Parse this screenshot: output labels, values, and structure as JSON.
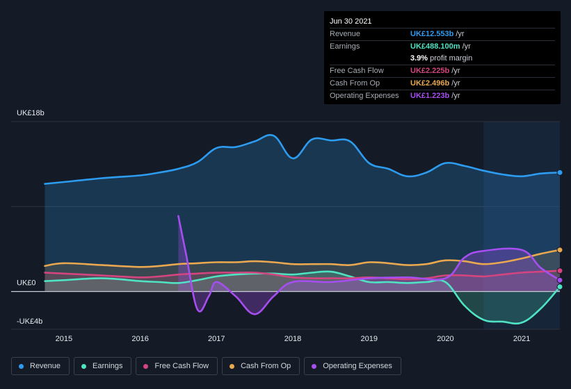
{
  "colors": {
    "revenue": "#2d9cf0",
    "earnings": "#4fe3c4",
    "fcf": "#d4457f",
    "cfo": "#e9a84f",
    "opex": "#a64ef0"
  },
  "tooltip": {
    "date": "Jun 30 2021",
    "rows": [
      {
        "label": "Revenue",
        "value": "UK£12.553b",
        "unit": "/yr",
        "color": "#2d9cf0"
      },
      {
        "label": "Earnings",
        "value": "UK£488.100m",
        "unit": "/yr",
        "color": "#4fe3c4"
      },
      {
        "label": "",
        "value": "3.9%",
        "unit": "profit margin",
        "color": "#ffffff"
      },
      {
        "label": "Free Cash Flow",
        "value": "UK£2.225b",
        "unit": "/yr",
        "color": "#d4457f"
      },
      {
        "label": "Cash From Op",
        "value": "UK£2.496b",
        "unit": "/yr",
        "color": "#e9a84f"
      },
      {
        "label": "Operating Expenses",
        "value": "UK£1.223b",
        "unit": "/yr",
        "color": "#a64ef0"
      }
    ]
  },
  "legend": [
    {
      "key": "revenue",
      "label": "Revenue"
    },
    {
      "key": "earnings",
      "label": "Earnings"
    },
    {
      "key": "fcf",
      "label": "Free Cash Flow"
    },
    {
      "key": "cfo",
      "label": "Cash From Op"
    },
    {
      "key": "opex",
      "label": "Operating Expenses"
    }
  ],
  "chart_data": {
    "type": "area",
    "ylim": [
      -4,
      18
    ],
    "y_tick_labels": [
      {
        "value": 18,
        "label": "UK£18b"
      },
      {
        "value": 0,
        "label": "UK£0"
      },
      {
        "value": -4,
        "label": "-UK£4b"
      }
    ],
    "xlim": [
      2014.6,
      2021.5
    ],
    "x_tick_labels": [
      "2015",
      "2016",
      "2017",
      "2018",
      "2019",
      "2020",
      "2021"
    ],
    "x_tick_values": [
      2015,
      2016,
      2017,
      2018,
      2019,
      2020,
      2021
    ],
    "forecast_start": 2020.5,
    "series": [
      {
        "key": "revenue",
        "name": "Revenue",
        "points": [
          [
            2014.75,
            11.4
          ],
          [
            2015.0,
            11.6
          ],
          [
            2015.5,
            12.0
          ],
          [
            2016.0,
            12.3
          ],
          [
            2016.25,
            12.6
          ],
          [
            2016.5,
            13.0
          ],
          [
            2016.75,
            13.7
          ],
          [
            2017.0,
            15.2
          ],
          [
            2017.25,
            15.3
          ],
          [
            2017.5,
            15.9
          ],
          [
            2017.75,
            16.5
          ],
          [
            2018.0,
            14.1
          ],
          [
            2018.25,
            16.1
          ],
          [
            2018.5,
            16.0
          ],
          [
            2018.75,
            15.9
          ],
          [
            2019.0,
            13.6
          ],
          [
            2019.25,
            13.0
          ],
          [
            2019.5,
            12.2
          ],
          [
            2019.75,
            12.6
          ],
          [
            2020.0,
            13.6
          ],
          [
            2020.25,
            13.3
          ],
          [
            2020.5,
            12.8
          ],
          [
            2020.75,
            12.4
          ],
          [
            2021.0,
            12.2
          ],
          [
            2021.25,
            12.5
          ],
          [
            2021.5,
            12.6
          ]
        ]
      },
      {
        "key": "earnings",
        "name": "Earnings",
        "points": [
          [
            2014.75,
            1.1
          ],
          [
            2015.0,
            1.2
          ],
          [
            2015.5,
            1.4
          ],
          [
            2016.0,
            1.1
          ],
          [
            2016.25,
            1.0
          ],
          [
            2016.5,
            0.9
          ],
          [
            2016.75,
            1.2
          ],
          [
            2017.0,
            1.6
          ],
          [
            2017.25,
            1.8
          ],
          [
            2017.5,
            1.9
          ],
          [
            2017.75,
            1.9
          ],
          [
            2018.0,
            1.8
          ],
          [
            2018.25,
            2.0
          ],
          [
            2018.5,
            2.1
          ],
          [
            2018.75,
            1.6
          ],
          [
            2019.0,
            1.0
          ],
          [
            2019.25,
            1.0
          ],
          [
            2019.5,
            0.9
          ],
          [
            2019.75,
            1.0
          ],
          [
            2020.0,
            1.0
          ],
          [
            2020.25,
            -1.5
          ],
          [
            2020.5,
            -3.0
          ],
          [
            2020.75,
            -3.2
          ],
          [
            2021.0,
            -3.3
          ],
          [
            2021.25,
            -1.8
          ],
          [
            2021.5,
            0.5
          ]
        ]
      },
      {
        "key": "fcf",
        "name": "Free Cash Flow",
        "points": [
          [
            2014.75,
            2.0
          ],
          [
            2015.0,
            1.9
          ],
          [
            2015.5,
            1.7
          ],
          [
            2016.0,
            1.5
          ],
          [
            2016.25,
            1.6
          ],
          [
            2016.5,
            1.8
          ],
          [
            2016.75,
            1.9
          ],
          [
            2017.0,
            2.0
          ],
          [
            2017.25,
            2.0
          ],
          [
            2017.5,
            2.0
          ],
          [
            2017.75,
            1.8
          ],
          [
            2018.0,
            1.5
          ],
          [
            2018.25,
            1.4
          ],
          [
            2018.5,
            1.4
          ],
          [
            2018.75,
            1.4
          ],
          [
            2019.0,
            1.5
          ],
          [
            2019.25,
            1.4
          ],
          [
            2019.5,
            1.3
          ],
          [
            2019.75,
            1.4
          ],
          [
            2020.0,
            1.7
          ],
          [
            2020.25,
            1.7
          ],
          [
            2020.5,
            1.6
          ],
          [
            2020.75,
            1.8
          ],
          [
            2021.0,
            2.0
          ],
          [
            2021.25,
            2.1
          ],
          [
            2021.5,
            2.2
          ]
        ]
      },
      {
        "key": "cfo",
        "name": "Cash From Op",
        "points": [
          [
            2014.75,
            2.7
          ],
          [
            2015.0,
            3.0
          ],
          [
            2015.5,
            2.8
          ],
          [
            2016.0,
            2.6
          ],
          [
            2016.25,
            2.7
          ],
          [
            2016.5,
            2.9
          ],
          [
            2016.75,
            3.0
          ],
          [
            2017.0,
            3.1
          ],
          [
            2017.25,
            3.1
          ],
          [
            2017.5,
            3.2
          ],
          [
            2017.75,
            3.1
          ],
          [
            2018.0,
            2.9
          ],
          [
            2018.25,
            2.9
          ],
          [
            2018.5,
            2.9
          ],
          [
            2018.75,
            2.8
          ],
          [
            2019.0,
            3.1
          ],
          [
            2019.25,
            3.0
          ],
          [
            2019.5,
            2.8
          ],
          [
            2019.75,
            2.9
          ],
          [
            2020.0,
            3.3
          ],
          [
            2020.25,
            3.2
          ],
          [
            2020.5,
            2.9
          ],
          [
            2020.75,
            3.1
          ],
          [
            2021.0,
            3.5
          ],
          [
            2021.25,
            4.0
          ],
          [
            2021.5,
            4.4
          ]
        ]
      },
      {
        "key": "opex",
        "name": "Operating Expenses",
        "points": [
          [
            2016.5,
            8.0
          ],
          [
            2016.6,
            4.0
          ],
          [
            2016.75,
            -1.9
          ],
          [
            2016.9,
            -0.5
          ],
          [
            2017.0,
            1.0
          ],
          [
            2017.25,
            -0.5
          ],
          [
            2017.5,
            -2.4
          ],
          [
            2017.75,
            -0.5
          ],
          [
            2018.0,
            1.0
          ],
          [
            2018.5,
            1.0
          ],
          [
            2019.0,
            1.4
          ],
          [
            2019.5,
            1.5
          ],
          [
            2020.0,
            1.4
          ],
          [
            2020.25,
            3.6
          ],
          [
            2020.5,
            4.3
          ],
          [
            2021.0,
            4.4
          ],
          [
            2021.25,
            2.5
          ],
          [
            2021.5,
            1.2
          ]
        ]
      }
    ]
  }
}
